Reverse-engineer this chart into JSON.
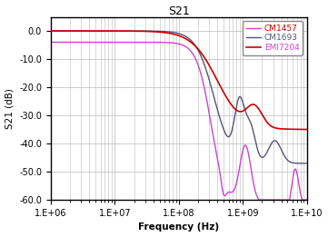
{
  "title": "S21",
  "xlabel": "Frequency (Hz)",
  "ylabel": "S21 (dB)",
  "ylim": [
    -60,
    5
  ],
  "yticks": [
    0.0,
    -10.0,
    -20.0,
    -30.0,
    -40.0,
    -50.0,
    -60.0
  ],
  "ytick_labels": [
    "0.0",
    "-10.0",
    "-20.0",
    "-30.0",
    "-40.0",
    "-50.0",
    "-60.0"
  ],
  "xtick_positions": [
    1000000.0,
    10000000.0,
    100000000.0,
    1000000000.0,
    10000000000.0
  ],
  "xtick_labels": [
    "1.E+06",
    "1.E+07",
    "1.E+08",
    "1.E+09",
    "1.E+10"
  ],
  "legend": [
    "EMI7204",
    "CM1693",
    "CM1457"
  ],
  "colors": [
    "#cc0000",
    "#555577",
    "#cc44cc"
  ],
  "background": "#ffffff",
  "grid_color": "#bbbbbb",
  "legend_text_colors": [
    "#cc0000",
    "#555577",
    "#cc44cc"
  ]
}
